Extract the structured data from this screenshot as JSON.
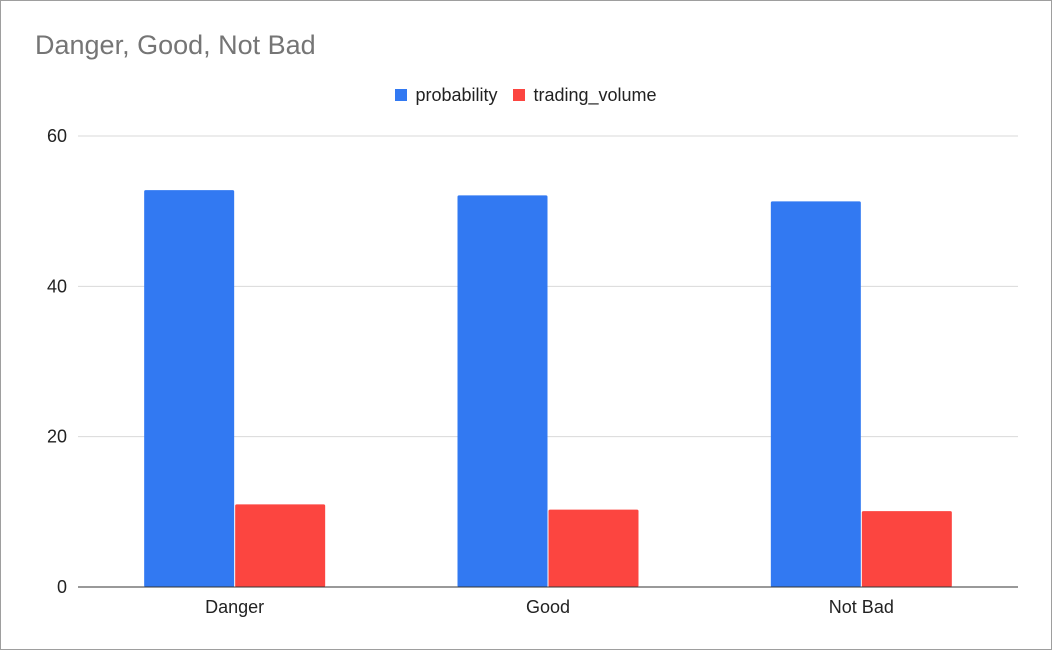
{
  "chart_data": {
    "type": "bar",
    "title": "Danger, Good, Not Bad",
    "categories": [
      "Danger",
      "Good",
      "Not Bad"
    ],
    "series": [
      {
        "name": "probability",
        "color": "#3279f2",
        "values": [
          52.8,
          52.1,
          51.3
        ]
      },
      {
        "name": "trading_volume",
        "color": "#fc4540",
        "values": [
          11.0,
          10.3,
          10.1
        ]
      }
    ],
    "ylim": [
      0,
      60
    ],
    "yticks": [
      0,
      20,
      40,
      60
    ],
    "grid": true,
    "legend_position": "top-center",
    "xlabel": "",
    "ylabel": ""
  }
}
